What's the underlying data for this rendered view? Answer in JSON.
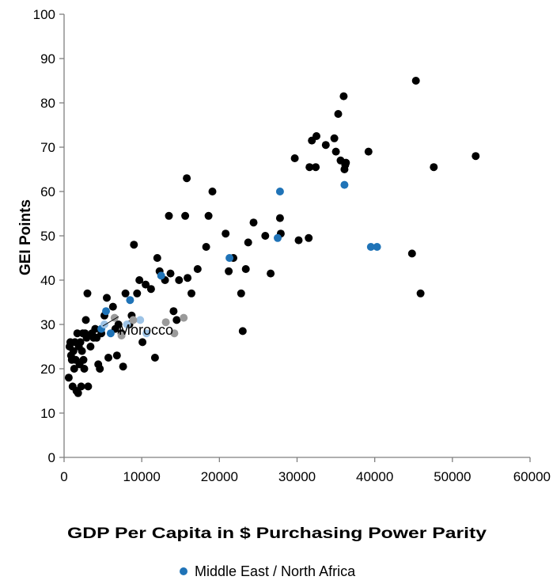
{
  "chart_data": {
    "type": "scatter",
    "title": "",
    "xlabel": "GDP Per Capita in $ Purchasing Power Parity",
    "ylabel": "GEI Points",
    "xlim": [
      0,
      60000
    ],
    "ylim": [
      0,
      100
    ],
    "xticks": [
      0,
      10000,
      20000,
      30000,
      40000,
      50000,
      60000
    ],
    "yticks": [
      0,
      10,
      20,
      30,
      40,
      50,
      60,
      70,
      80,
      90,
      100
    ],
    "grid": false,
    "legend": {
      "position": "bottom-center",
      "entries": [
        "Middle East / North Africa"
      ]
    },
    "colors": {
      "countries": "#000000",
      "middle_east_north_africa": "#1f73b7",
      "light_blue": "#9dc3e6",
      "gray": "#9a9a9a",
      "axis": "#7f7f7f"
    },
    "annotations": [
      {
        "text": "Morocco",
        "point": [
          4800,
          29
        ]
      }
    ],
    "series": [
      {
        "key": "countries",
        "color": "#000000",
        "points": [
          [
            600,
            18
          ],
          [
            700,
            25
          ],
          [
            800,
            26
          ],
          [
            900,
            23
          ],
          [
            1000,
            22
          ],
          [
            1100,
            16
          ],
          [
            1200,
            24
          ],
          [
            1300,
            20
          ],
          [
            1400,
            26
          ],
          [
            1500,
            22
          ],
          [
            1600,
            15
          ],
          [
            1700,
            28
          ],
          [
            1800,
            14.5
          ],
          [
            1900,
            25
          ],
          [
            2000,
            21
          ],
          [
            2100,
            26
          ],
          [
            2200,
            16
          ],
          [
            2300,
            24
          ],
          [
            2400,
            28
          ],
          [
            2500,
            22
          ],
          [
            2600,
            20
          ],
          [
            2700,
            28
          ],
          [
            2800,
            31
          ],
          [
            2900,
            27
          ],
          [
            3000,
            37
          ],
          [
            3100,
            16
          ],
          [
            3400,
            25
          ],
          [
            3600,
            28
          ],
          [
            3800,
            27
          ],
          [
            4000,
            29
          ],
          [
            4200,
            27
          ],
          [
            4400,
            21
          ],
          [
            4600,
            20
          ],
          [
            4800,
            28
          ],
          [
            5200,
            32
          ],
          [
            5500,
            36
          ],
          [
            5700,
            22.5
          ],
          [
            6300,
            34
          ],
          [
            6600,
            29
          ],
          [
            6800,
            23
          ],
          [
            7000,
            30
          ],
          [
            7400,
            28
          ],
          [
            7600,
            20.5
          ],
          [
            7900,
            37
          ],
          [
            8400,
            30
          ],
          [
            8700,
            32
          ],
          [
            9000,
            48
          ],
          [
            9400,
            37
          ],
          [
            9700,
            40
          ],
          [
            10100,
            26
          ],
          [
            10500,
            39
          ],
          [
            11200,
            38
          ],
          [
            11700,
            22.5
          ],
          [
            12000,
            45
          ],
          [
            12300,
            42
          ],
          [
            13000,
            40
          ],
          [
            13500,
            54.5
          ],
          [
            13700,
            41.5
          ],
          [
            14100,
            33
          ],
          [
            14500,
            31
          ],
          [
            14800,
            40
          ],
          [
            15600,
            54.5
          ],
          [
            15800,
            63
          ],
          [
            15900,
            40.5
          ],
          [
            16400,
            37
          ],
          [
            17200,
            42.5
          ],
          [
            18300,
            47.5
          ],
          [
            18600,
            54.5
          ],
          [
            19100,
            60
          ],
          [
            20800,
            50.5
          ],
          [
            21200,
            42
          ],
          [
            21800,
            45
          ],
          [
            22800,
            37
          ],
          [
            23000,
            28.5
          ],
          [
            23400,
            42.5
          ],
          [
            23700,
            48.5
          ],
          [
            24400,
            53
          ],
          [
            25900,
            50
          ],
          [
            26600,
            41.5
          ],
          [
            27800,
            54
          ],
          [
            27900,
            50.5
          ],
          [
            29700,
            67.5
          ],
          [
            30200,
            49
          ],
          [
            31500,
            49.5
          ],
          [
            31600,
            65.5
          ],
          [
            31900,
            71.5
          ],
          [
            32400,
            65.5
          ],
          [
            32500,
            72.5
          ],
          [
            33700,
            70.5
          ],
          [
            34800,
            72
          ],
          [
            35000,
            69
          ],
          [
            35300,
            77.5
          ],
          [
            35600,
            67
          ],
          [
            36000,
            81.5
          ],
          [
            36100,
            65
          ],
          [
            36200,
            66
          ],
          [
            36300,
            66.5
          ],
          [
            39200,
            69
          ],
          [
            44800,
            46
          ],
          [
            45300,
            85
          ],
          [
            45900,
            37
          ],
          [
            47600,
            65.5
          ],
          [
            53000,
            68
          ]
        ]
      },
      {
        "key": "middle_east_north_africa",
        "name": "Middle East / North Africa",
        "color": "#1f73b7",
        "points": [
          [
            4800,
            29
          ],
          [
            5400,
            33
          ],
          [
            6000,
            28
          ],
          [
            8500,
            35.5
          ],
          [
            12500,
            41
          ],
          [
            21300,
            45
          ],
          [
            27500,
            49.5
          ],
          [
            27800,
            60
          ],
          [
            36100,
            61.5
          ],
          [
            39500,
            47.5
          ],
          [
            40300,
            47.5
          ]
        ]
      },
      {
        "key": "light_blue",
        "color": "#9dc3e6",
        "points": [
          [
            5200,
            30
          ],
          [
            8100,
            30
          ],
          [
            9800,
            31
          ],
          [
            10600,
            28
          ]
        ]
      },
      {
        "key": "gray",
        "color": "#9a9a9a",
        "points": [
          [
            6500,
            31.5
          ],
          [
            7400,
            27.5
          ],
          [
            8900,
            31
          ],
          [
            13100,
            30.5
          ],
          [
            14200,
            28
          ],
          [
            15400,
            31.5
          ]
        ]
      }
    ]
  }
}
